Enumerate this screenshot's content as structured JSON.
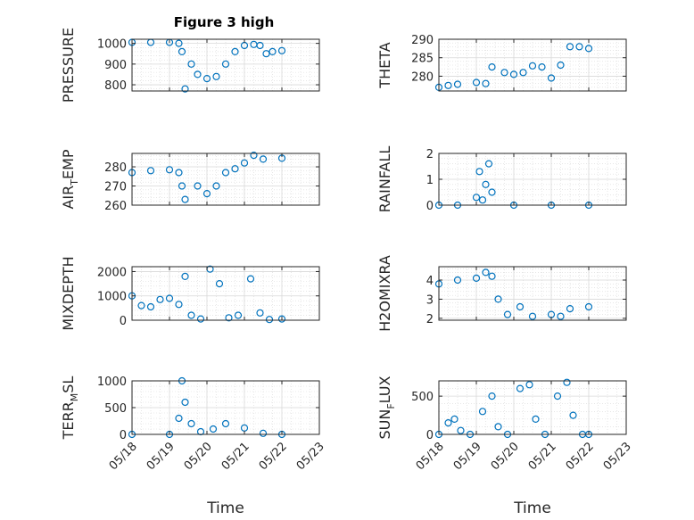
{
  "figure": {
    "title": "Figure 3 high"
  },
  "chart_data": [
    {
      "type": "scatter",
      "ylabel": "PRESSURE",
      "ylim": [
        770,
        1020
      ],
      "yticks": [
        "800",
        "900",
        "1000"
      ],
      "x": [
        "05/18 00:00",
        "05/18 12:00",
        "05/19 00:00",
        "05/19 06:00",
        "05/19 08:00",
        "05/19 10:00",
        "05/19 14:00",
        "05/19 18:00",
        "05/20 00:00",
        "05/20 06:00",
        "05/20 12:00",
        "05/20 18:00",
        "05/21 00:00",
        "05/21 06:00",
        "05/21 10:00",
        "05/21 14:00",
        "05/21 18:00",
        "05/22 00:00"
      ],
      "y": [
        1005,
        1005,
        1005,
        1000,
        960,
        780,
        900,
        850,
        830,
        840,
        900,
        960,
        990,
        995,
        990,
        950,
        960,
        965
      ]
    },
    {
      "type": "scatter",
      "ylabel": "THETA",
      "ylim": [
        276,
        290
      ],
      "yticks": [
        "280",
        "285",
        "290"
      ],
      "x": [
        "05/18 00:00",
        "05/18 06:00",
        "05/18 12:00",
        "05/19 00:00",
        "05/19 06:00",
        "05/19 10:00",
        "05/19 18:00",
        "05/20 00:00",
        "05/20 06:00",
        "05/20 12:00",
        "05/20 18:00",
        "05/21 00:00",
        "05/21 06:00",
        "05/21 12:00",
        "05/21 18:00",
        "05/22 00:00"
      ],
      "y": [
        277,
        277.5,
        277.8,
        278.3,
        278,
        282.5,
        281,
        280.5,
        281,
        282.8,
        282.5,
        279.5,
        283,
        288,
        288,
        287.5
      ]
    },
    {
      "type": "scatter",
      "ylabel": "AIR_TEMP",
      "ylim": [
        260,
        287
      ],
      "yticks": [
        "260",
        "270",
        "280"
      ],
      "x": [
        "05/18 00:00",
        "05/18 12:00",
        "05/19 00:00",
        "05/19 06:00",
        "05/19 08:00",
        "05/19 10:00",
        "05/19 18:00",
        "05/20 00:00",
        "05/20 06:00",
        "05/20 12:00",
        "05/20 18:00",
        "05/21 00:00",
        "05/21 06:00",
        "05/21 12:00",
        "05/22 00:00"
      ],
      "y": [
        277,
        278,
        278.5,
        277,
        270,
        263,
        270,
        266,
        270,
        277,
        279,
        282,
        286,
        284,
        284.5
      ]
    },
    {
      "type": "scatter",
      "ylabel": "RAINFALL",
      "ylim": [
        0,
        2
      ],
      "yticks": [
        "0",
        "1",
        "2"
      ],
      "x": [
        "05/18 00:00",
        "05/18 12:00",
        "05/19 00:00",
        "05/19 02:00",
        "05/19 04:00",
        "05/19 06:00",
        "05/19 08:00",
        "05/19 10:00",
        "05/20 00:00",
        "05/21 00:00",
        "05/22 00:00"
      ],
      "y": [
        0,
        0,
        0.3,
        1.3,
        0.2,
        0.8,
        1.6,
        0.5,
        0,
        0,
        0
      ]
    },
    {
      "type": "scatter",
      "ylabel": "MIXDEPTH",
      "ylim": [
        0,
        2200
      ],
      "yticks": [
        "0",
        "1000",
        "2000"
      ],
      "x": [
        "05/18 00:00",
        "05/18 06:00",
        "05/18 12:00",
        "05/18 18:00",
        "05/19 00:00",
        "05/19 06:00",
        "05/19 10:00",
        "05/19 14:00",
        "05/19 20:00",
        "05/20 02:00",
        "05/20 08:00",
        "05/20 14:00",
        "05/20 20:00",
        "05/21 04:00",
        "05/21 10:00",
        "05/21 16:00",
        "05/22 00:00"
      ],
      "y": [
        1000,
        600,
        550,
        850,
        900,
        650,
        1800,
        200,
        50,
        2100,
        1500,
        100,
        200,
        1700,
        300,
        30,
        50
      ]
    },
    {
      "type": "scatter",
      "ylabel": "H2OMIXRA",
      "ylim": [
        1.9,
        4.7
      ],
      "yticks": [
        "2",
        "3",
        "4"
      ],
      "x": [
        "05/18 00:00",
        "05/18 12:00",
        "05/19 00:00",
        "05/19 06:00",
        "05/19 10:00",
        "05/19 14:00",
        "05/19 20:00",
        "05/20 04:00",
        "05/20 12:00",
        "05/21 00:00",
        "05/21 06:00",
        "05/21 12:00",
        "05/22 00:00"
      ],
      "y": [
        3.8,
        4,
        4.1,
        4.4,
        4.2,
        3,
        2.2,
        2.6,
        2.1,
        2.2,
        2.1,
        2.5,
        2.6
      ]
    },
    {
      "type": "scatter",
      "ylabel": "TERR_MSL",
      "ylim": [
        0,
        1000
      ],
      "yticks": [
        "0",
        "500",
        "1000"
      ],
      "xticks": [
        "05/18",
        "05/19",
        "05/20",
        "05/21",
        "05/22",
        "05/23"
      ],
      "xlabel": "Time",
      "x": [
        "05/18 00:00",
        "05/19 00:00",
        "05/19 06:00",
        "05/19 08:00",
        "05/19 10:00",
        "05/19 14:00",
        "05/19 20:00",
        "05/20 04:00",
        "05/20 12:00",
        "05/21 00:00",
        "05/21 12:00",
        "05/22 00:00"
      ],
      "y": [
        0,
        0,
        300,
        1000,
        600,
        200,
        50,
        100,
        200,
        120,
        20,
        0
      ]
    },
    {
      "type": "scatter",
      "ylabel": "SUN_FLUX",
      "ylim": [
        0,
        700
      ],
      "yticks": [
        "0",
        "500"
      ],
      "xticks": [
        "05/18",
        "05/19",
        "05/20",
        "05/21",
        "05/22",
        "05/23"
      ],
      "xlabel": "Time",
      "x": [
        "05/18 00:00",
        "05/18 06:00",
        "05/18 10:00",
        "05/18 14:00",
        "05/18 20:00",
        "05/19 04:00",
        "05/19 10:00",
        "05/19 14:00",
        "05/19 20:00",
        "05/20 04:00",
        "05/20 10:00",
        "05/20 14:00",
        "05/20 20:00",
        "05/21 04:00",
        "05/21 10:00",
        "05/21 14:00",
        "05/21 20:00",
        "05/22 00:00"
      ],
      "y": [
        0,
        150,
        200,
        50,
        0,
        300,
        500,
        100,
        0,
        600,
        650,
        200,
        0,
        500,
        680,
        250,
        0,
        0
      ]
    }
  ]
}
